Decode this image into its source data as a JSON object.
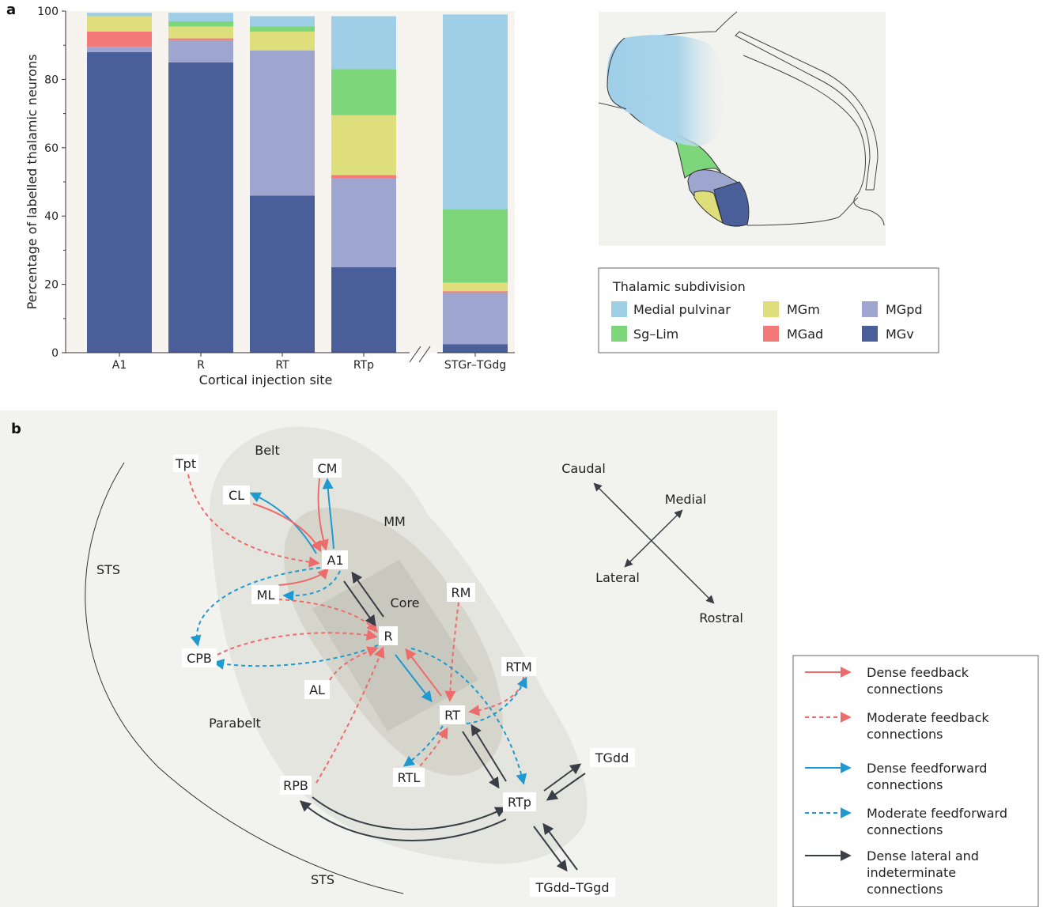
{
  "panel_labels": {
    "a": "a",
    "b": "b"
  },
  "colors": {
    "Medial pulvinar": "#9ecfe7",
    "Sg–Lim": "#7ed67a",
    "MGm": "#dfde7c",
    "MGad": "#f47a7a",
    "MGpd": "#9ea6cf",
    "MGv": "#4a5f9a",
    "dense_feedback": "#ee6b6b",
    "moderate_feedback": "#ee6b6b",
    "dense_feedforward": "#1f9ad0",
    "moderate_feedforward": "#1f9ad0",
    "dense_lateral": "#3a3f47"
  },
  "chart_data": {
    "type": "bar",
    "stacked": true,
    "ylabel": "Percentage of labelled thalamic neurons",
    "xlabel": "Cortical injection site",
    "ylim": [
      0,
      100
    ],
    "yticks": [
      0,
      20,
      40,
      60,
      80,
      100
    ],
    "categories": [
      "A1",
      "R",
      "RT",
      "RTp",
      "STGr–TGdg"
    ],
    "axis_break_after": "RTp",
    "series": [
      {
        "name": "MGv",
        "values": [
          88,
          85,
          46,
          25,
          2.5
        ]
      },
      {
        "name": "MGpd",
        "values": [
          1.5,
          6.5,
          42.5,
          26,
          15
        ]
      },
      {
        "name": "MGad",
        "values": [
          4.5,
          0.5,
          0,
          1,
          0.5
        ]
      },
      {
        "name": "MGm",
        "values": [
          4.5,
          3.5,
          5.5,
          17.5,
          2.5
        ]
      },
      {
        "name": "Sg–Lim",
        "values": [
          0,
          1.5,
          1.5,
          13.5,
          21.5
        ]
      },
      {
        "name": "Medial pulvinar",
        "values": [
          1,
          2.5,
          3,
          15.5,
          57
        ]
      }
    ]
  },
  "legend_a": {
    "title": "Thalamic subdivision",
    "items": [
      "Medial pulvinar",
      "Sg–Lim",
      "MGm",
      "MGad",
      "MGpd",
      "MGv"
    ]
  },
  "diagram": {
    "regions": {
      "belt": "Belt",
      "core": "Core",
      "parabelt": "Parabelt",
      "mm": "MM",
      "sts_top": "STS",
      "sts_bottom": "STS"
    },
    "nodes": {
      "tpt": "Tpt",
      "cm": "CM",
      "cl": "CL",
      "a1": "A1",
      "ml": "ML",
      "r": "R",
      "cpb": "CPB",
      "al": "AL",
      "rm": "RM",
      "rtm": "RTM",
      "rt": "RT",
      "rtl": "RTL",
      "rpb": "RPB",
      "rtp": "RTp",
      "tgdd": "TGdd",
      "tgdd_tggd": "TGdd–TGgd"
    },
    "compass": {
      "caudal": "Caudal",
      "medial": "Medial",
      "lateral": "Lateral",
      "rostral": "Rostral"
    },
    "legend": [
      {
        "line1": "Dense feedback",
        "line2": "connections",
        "style": "dense_feedback"
      },
      {
        "line1": "Moderate feedback",
        "line2": "connections",
        "style": "moderate_feedback"
      },
      {
        "line1": "Dense feedforward",
        "line2": "connections",
        "style": "dense_feedforward"
      },
      {
        "line1": "Moderate feedforward",
        "line2": "connections",
        "style": "moderate_feedforward"
      },
      {
        "line1": "Dense lateral and",
        "line2": "indeterminate",
        "line3": "connections",
        "style": "dense_lateral"
      }
    ]
  }
}
